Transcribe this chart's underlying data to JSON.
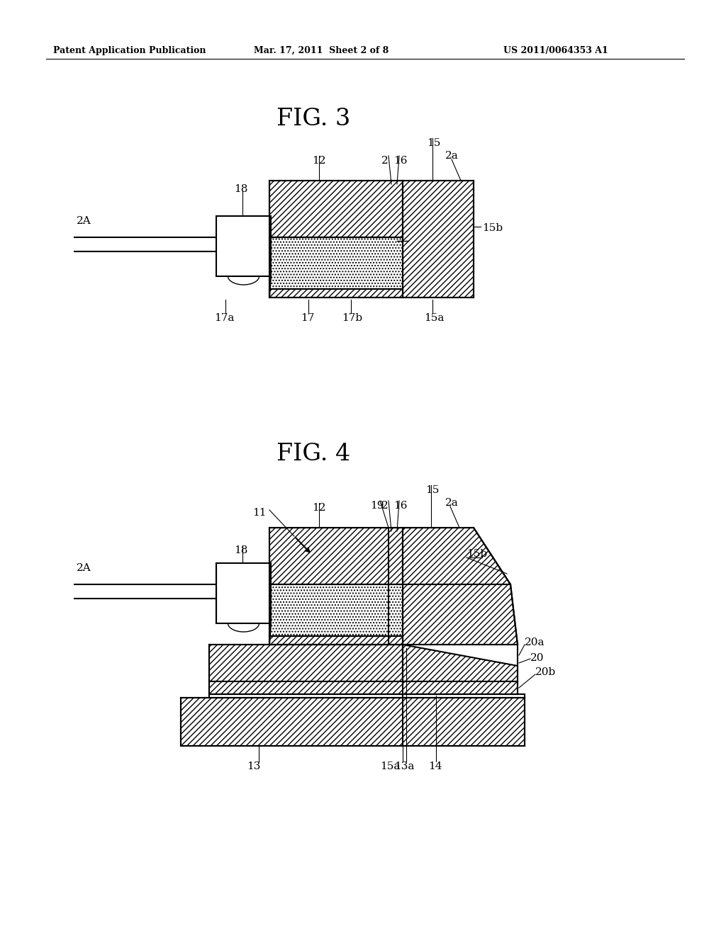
{
  "bg_color": "#ffffff",
  "header_left": "Patent Application Publication",
  "header_mid": "Mar. 17, 2011  Sheet 2 of 8",
  "header_right": "US 2011/0064353 A1",
  "fig3_title": "FIG. 3",
  "fig4_title": "FIG. 4"
}
